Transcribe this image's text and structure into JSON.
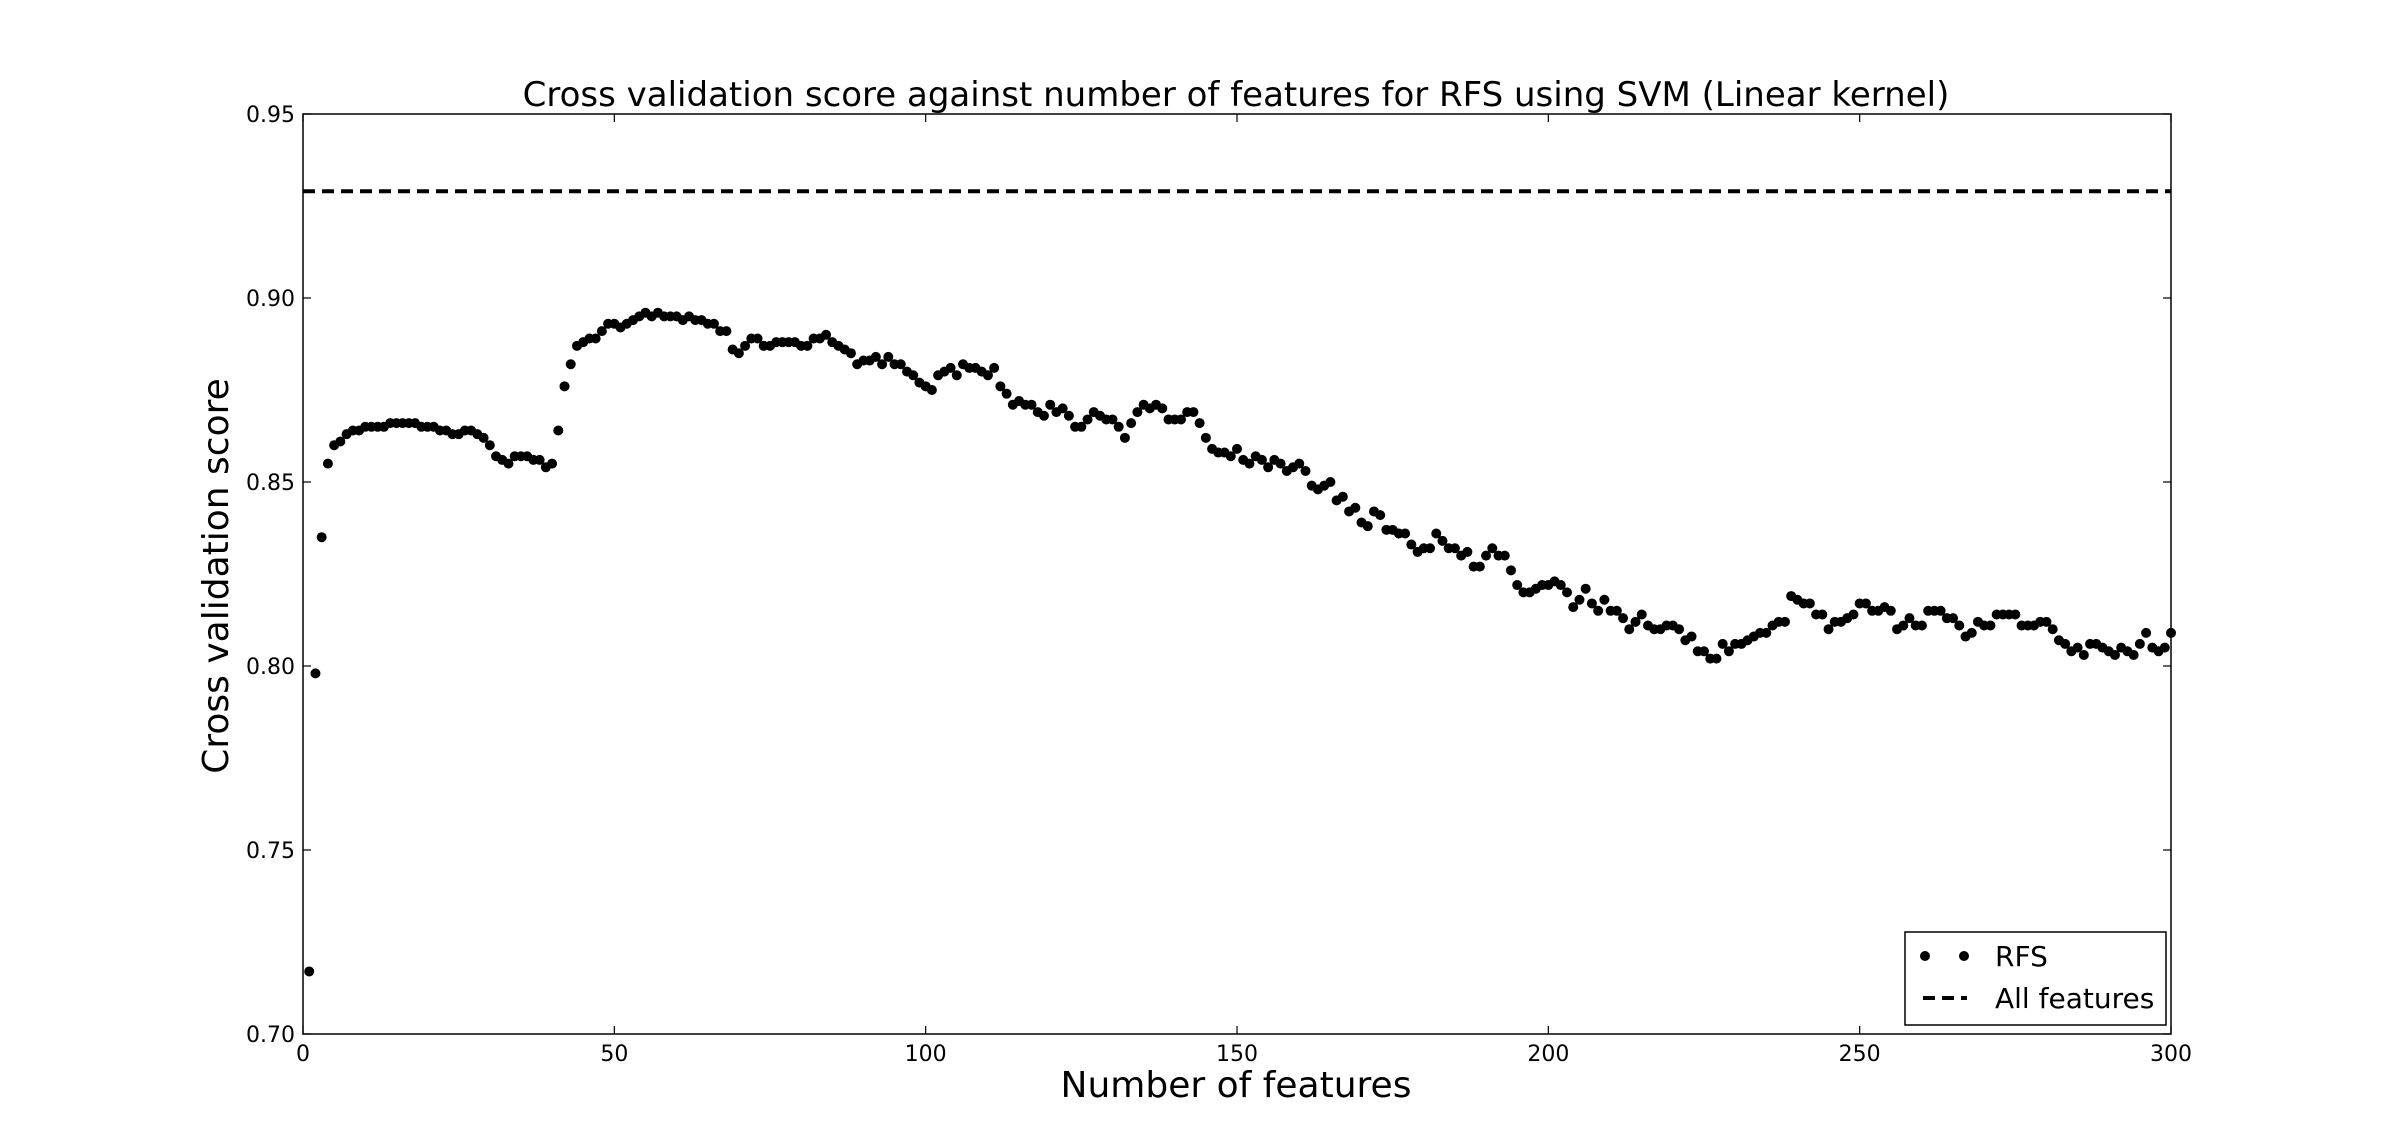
{
  "chart_data": {
    "type": "scatter",
    "title": "Cross validation score against number of features for RFS using SVM (Linear kernel)",
    "xlabel": "Number of features",
    "ylabel": "Cross validation score",
    "xlim": [
      0,
      300
    ],
    "ylim": [
      0.7,
      0.95
    ],
    "xticks": [
      0,
      50,
      100,
      150,
      200,
      250,
      300
    ],
    "yticks": [
      0.7,
      0.75,
      0.8,
      0.85,
      0.9,
      0.95
    ],
    "xtick_labels": [
      "0",
      "50",
      "100",
      "150",
      "200",
      "250",
      "300"
    ],
    "ytick_labels": [
      "0.70",
      "0.75",
      "0.80",
      "0.85",
      "0.90",
      "0.95"
    ],
    "grid": false,
    "legend": {
      "position": "bottom-right",
      "entries": [
        "RFS",
        "All features"
      ]
    },
    "series": [
      {
        "name": "RFS",
        "style": "dots",
        "color": "#000000",
        "x_start": 1,
        "x_step": 1,
        "values": [
          0.717,
          0.798,
          0.835,
          0.855,
          0.86,
          0.861,
          0.863,
          0.864,
          0.864,
          0.865,
          0.865,
          0.865,
          0.865,
          0.866,
          0.866,
          0.866,
          0.866,
          0.866,
          0.865,
          0.865,
          0.865,
          0.864,
          0.864,
          0.863,
          0.863,
          0.864,
          0.864,
          0.863,
          0.862,
          0.86,
          0.857,
          0.856,
          0.855,
          0.857,
          0.857,
          0.857,
          0.856,
          0.856,
          0.854,
          0.855,
          0.864,
          0.876,
          0.882,
          0.887,
          0.888,
          0.889,
          0.889,
          0.891,
          0.893,
          0.893,
          0.892,
          0.893,
          0.894,
          0.895,
          0.896,
          0.895,
          0.896,
          0.895,
          0.895,
          0.895,
          0.894,
          0.895,
          0.894,
          0.894,
          0.893,
          0.893,
          0.891,
          0.891,
          0.886,
          0.885,
          0.887,
          0.889,
          0.889,
          0.887,
          0.887,
          0.888,
          0.888,
          0.888,
          0.888,
          0.887,
          0.887,
          0.889,
          0.889,
          0.89,
          0.888,
          0.887,
          0.886,
          0.885,
          0.882,
          0.883,
          0.883,
          0.884,
          0.882,
          0.884,
          0.882,
          0.882,
          0.88,
          0.879,
          0.877,
          0.876,
          0.875,
          0.879,
          0.88,
          0.881,
          0.879,
          0.882,
          0.881,
          0.881,
          0.88,
          0.879,
          0.881,
          0.876,
          0.874,
          0.871,
          0.872,
          0.871,
          0.871,
          0.869,
          0.868,
          0.871,
          0.869,
          0.87,
          0.868,
          0.865,
          0.865,
          0.867,
          0.869,
          0.868,
          0.867,
          0.867,
          0.865,
          0.862,
          0.866,
          0.869,
          0.871,
          0.87,
          0.871,
          0.87,
          0.867,
          0.867,
          0.867,
          0.869,
          0.869,
          0.866,
          0.862,
          0.859,
          0.858,
          0.858,
          0.857,
          0.859,
          0.856,
          0.855,
          0.857,
          0.856,
          0.854,
          0.856,
          0.855,
          0.853,
          0.854,
          0.855,
          0.853,
          0.849,
          0.848,
          0.849,
          0.85,
          0.845,
          0.846,
          0.842,
          0.843,
          0.839,
          0.838,
          0.842,
          0.841,
          0.837,
          0.837,
          0.836,
          0.836,
          0.833,
          0.831,
          0.832,
          0.832,
          0.836,
          0.834,
          0.832,
          0.832,
          0.83,
          0.831,
          0.827,
          0.827,
          0.83,
          0.832,
          0.83,
          0.83,
          0.826,
          0.822,
          0.82,
          0.82,
          0.821,
          0.822,
          0.822,
          0.823,
          0.822,
          0.82,
          0.816,
          0.818,
          0.821,
          0.817,
          0.815,
          0.818,
          0.815,
          0.815,
          0.813,
          0.81,
          0.812,
          0.814,
          0.811,
          0.81,
          0.81,
          0.811,
          0.811,
          0.81,
          0.807,
          0.808,
          0.804,
          0.804,
          0.802,
          0.802,
          0.806,
          0.804,
          0.806,
          0.806,
          0.807,
          0.808,
          0.809,
          0.809,
          0.811,
          0.812,
          0.812,
          0.819,
          0.818,
          0.817,
          0.817,
          0.814,
          0.814,
          0.81,
          0.812,
          0.812,
          0.813,
          0.814,
          0.817,
          0.817,
          0.815,
          0.815,
          0.816,
          0.815,
          0.81,
          0.811,
          0.813,
          0.811,
          0.811,
          0.815,
          0.815,
          0.815,
          0.813,
          0.813,
          0.811,
          0.808,
          0.809,
          0.812,
          0.811,
          0.811,
          0.814,
          0.814,
          0.814,
          0.814,
          0.811,
          0.811,
          0.811,
          0.812,
          0.812,
          0.81,
          0.807,
          0.806,
          0.804,
          0.805,
          0.803,
          0.806,
          0.806,
          0.805,
          0.804,
          0.803,
          0.805,
          0.804,
          0.803,
          0.806,
          0.809,
          0.805,
          0.804,
          0.805,
          0.809
        ]
      },
      {
        "name": "All features",
        "style": "dashed-line",
        "color": "#000000",
        "constant": 0.929
      }
    ]
  }
}
